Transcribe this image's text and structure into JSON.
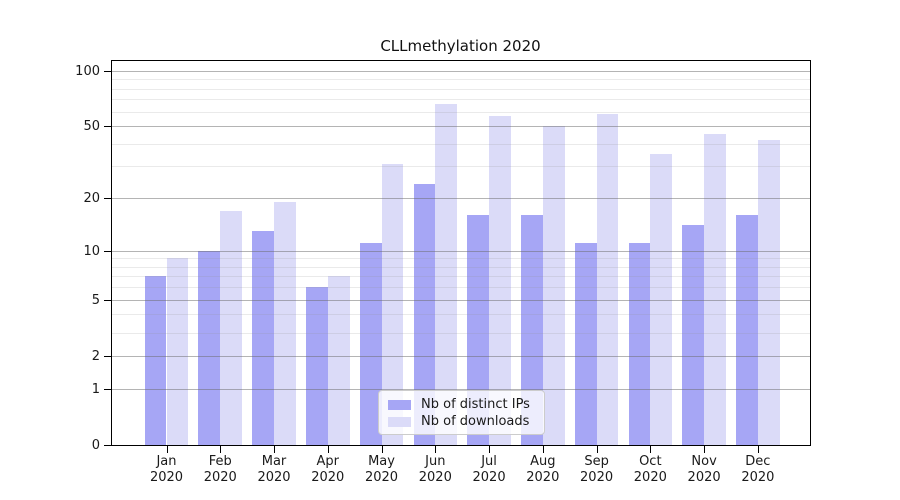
{
  "figure": {
    "title": "CLLmethylation 2020"
  },
  "chart_data": {
    "type": "bar",
    "title": "CLLmethylation 2020",
    "categories": [
      "Jan 2020",
      "Feb 2020",
      "Mar 2020",
      "Apr 2020",
      "May 2020",
      "Jun 2020",
      "Jul 2020",
      "Aug 2020",
      "Sep 2020",
      "Oct 2020",
      "Nov 2020",
      "Dec 2020"
    ],
    "x_tick_month": [
      "Jan",
      "Feb",
      "Mar",
      "Apr",
      "May",
      "Jun",
      "Jul",
      "Aug",
      "Sep",
      "Oct",
      "Nov",
      "Dec"
    ],
    "x_tick_year": "2020",
    "series": [
      {
        "name": "Nb of distinct IPs",
        "color": "#a6a6f5",
        "values": [
          7,
          10,
          13,
          6,
          11,
          24,
          16,
          16,
          11,
          11,
          14,
          16
        ]
      },
      {
        "name": "Nb of downloads",
        "color": "#dbdbf8",
        "values": [
          9,
          17,
          19,
          7,
          31,
          66,
          57,
          50,
          58,
          35,
          45,
          42
        ]
      }
    ],
    "yscale": "log1p",
    "ylim": [
      0,
      115
    ],
    "yticks": [
      0,
      1,
      2,
      5,
      10,
      20,
      50,
      100
    ],
    "ytick_labels": [
      "0",
      "1",
      "2",
      "5",
      "10",
      "20",
      "50",
      "100"
    ],
    "yticks_minor": [
      3,
      4,
      6,
      7,
      8,
      9,
      30,
      40,
      60,
      70,
      80,
      90
    ],
    "grid": true,
    "legend_position": "lower center"
  }
}
